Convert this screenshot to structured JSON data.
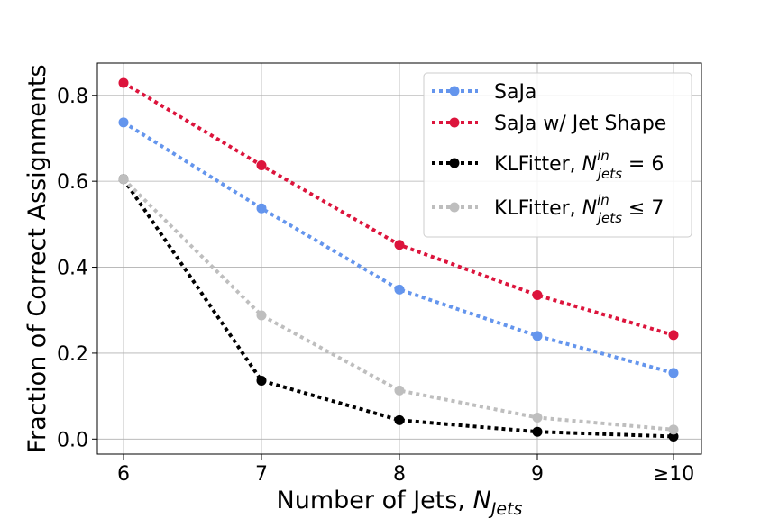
{
  "chart_data": {
    "type": "line",
    "title": "",
    "xlabel": "Number of Jets, ",
    "xlabel_math": "N",
    "xlabel_sub": "Jets",
    "ylabel": "Fraction of Correct Assignments",
    "categories": [
      "6",
      "7",
      "8",
      "9",
      "≥10"
    ],
    "ylim": [
      -0.035,
      0.875
    ],
    "yticks": [
      "0.0",
      "0.2",
      "0.4",
      "0.6",
      "0.8"
    ],
    "ytick_values": [
      0.0,
      0.2,
      0.4,
      0.6,
      0.8
    ],
    "grid": true,
    "legend_position": "top-right",
    "series": [
      {
        "name": "SaJa",
        "color": "#6495ED",
        "values": [
          0.737,
          0.537,
          0.348,
          0.24,
          0.154
        ]
      },
      {
        "name": "SaJa w/ Jet Shape",
        "color": "#DC143C",
        "values": [
          0.829,
          0.637,
          0.452,
          0.335,
          0.242
        ]
      },
      {
        "name": "KLFitter, ",
        "legend_math": "N",
        "legend_sup": "in",
        "legend_sub": "jets",
        "legend_rel": " = 6",
        "color": "#000000",
        "values": [
          0.605,
          0.136,
          0.044,
          0.017,
          0.006
        ]
      },
      {
        "name": "KLFitter, ",
        "legend_math": "N",
        "legend_sup": "in",
        "legend_sub": "jets",
        "legend_rel": " ≤ 7",
        "color": "#BEBEBE",
        "values": [
          0.605,
          0.288,
          0.113,
          0.05,
          0.022
        ]
      }
    ]
  }
}
